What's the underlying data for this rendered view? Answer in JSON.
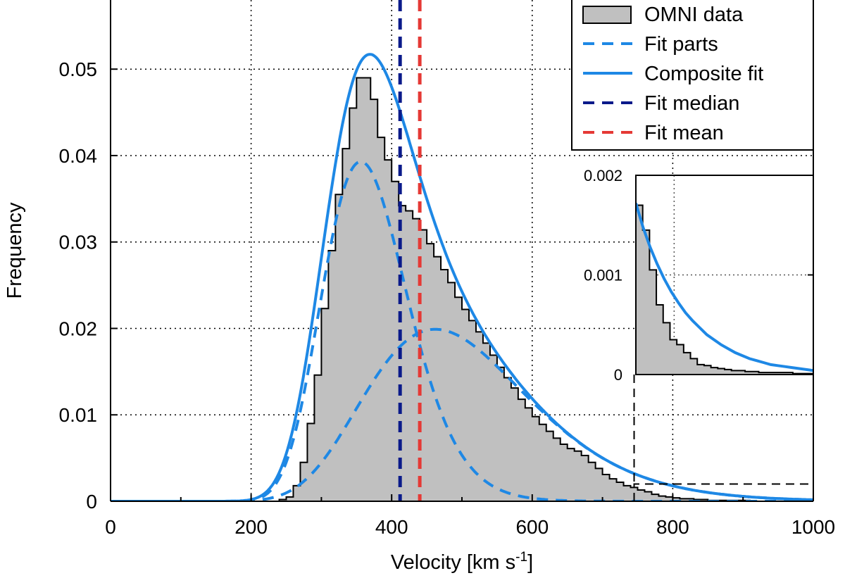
{
  "chart_data": {
    "type": "histogram",
    "xlabel": "Velocity [km s",
    "xlabel_sup": "-1",
    "xlabel_end": "]",
    "ylabel": "Frequency",
    "xlim": [
      0,
      1000
    ],
    "ylim": [
      0,
      0.058
    ],
    "xticks": [
      0,
      200,
      400,
      600,
      800,
      1000
    ],
    "xtick_labels": [
      "0",
      "200",
      "400",
      "600",
      "800",
      "1000"
    ],
    "yticks": [
      0,
      0.01,
      0.02,
      0.03,
      0.04,
      0.05
    ],
    "ytick_labels": [
      "0",
      "0.01",
      "0.02",
      "0.03",
      "0.04",
      "0.05"
    ],
    "grid": true,
    "legend_position": "top-right",
    "legend": [
      {
        "label": "OMNI data",
        "style": "bar",
        "color": "#c0c0c0"
      },
      {
        "label": "Fit parts",
        "style": "dashed",
        "color": "#1e88e5"
      },
      {
        "label": "Composite fit",
        "style": "solid",
        "color": "#1e88e5"
      },
      {
        "label": "Fit median",
        "style": "dashed",
        "color": "#0a1a8a"
      },
      {
        "label": "Fit mean",
        "style": "dashed",
        "color": "#e53935"
      }
    ],
    "histogram": {
      "name": "OMNI data",
      "bin_width": 10,
      "bin_start": 0,
      "values": [
        0,
        0,
        0,
        0,
        0,
        0,
        0,
        0,
        0,
        0,
        0,
        0,
        0,
        0,
        0,
        0,
        0,
        0,
        0,
        0,
        0,
        0,
        0,
        0,
        0.0002,
        0.0005,
        0.0018,
        0.0045,
        0.009,
        0.0146,
        0.0223,
        0.029,
        0.0355,
        0.0408,
        0.0455,
        0.049,
        0.049,
        0.0465,
        0.0421,
        0.0395,
        0.037,
        0.0342,
        0.0336,
        0.0327,
        0.0314,
        0.0298,
        0.0283,
        0.0268,
        0.0253,
        0.0236,
        0.0222,
        0.0209,
        0.0196,
        0.0183,
        0.0169,
        0.0155,
        0.0143,
        0.0131,
        0.0118,
        0.0108,
        0.0098,
        0.0089,
        0.0081,
        0.0073,
        0.0066,
        0.0061,
        0.0058,
        0.0053,
        0.0045,
        0.0038,
        0.0031,
        0.0026,
        0.0022,
        0.0018,
        0.0016,
        0.0013,
        0.0011,
        0.0008,
        0.0006,
        0.0005,
        0.0004,
        0.0003,
        0.0003,
        0.0002,
        0.0002,
        0.0001,
        0.0001,
        0.0001,
        0.0001,
        0.0001,
        0.0001,
        0,
        0,
        0,
        0,
        0,
        0,
        0,
        0,
        0
      ]
    },
    "fit_parts": [
      {
        "name": "Fit parts",
        "type": "lognormal",
        "scale": 0.0393,
        "mode": 356,
        "sigma": 0.17
      },
      {
        "name": "Fit parts",
        "type": "lognormal",
        "scale": 0.0199,
        "mode": 462,
        "sigma": 0.25
      }
    ],
    "composite_fit": {
      "name": "Composite fit",
      "peak": 0.0493,
      "peak_at": 368
    },
    "fit_median": 412,
    "fit_mean": 440,
    "inset": {
      "xlim": [
        745,
        1000
      ],
      "ylim": [
        0,
        0.002
      ],
      "yticks": [
        0,
        0.001,
        0.002
      ],
      "ytick_labels": [
        "0",
        "0.001",
        "0.002"
      ],
      "hist_values": [
        0.0017,
        0.00145,
        0.00105,
        0.0007,
        0.00052,
        0.00035,
        0.0003,
        0.00022,
        0.00016,
        0.0001,
        9e-05,
        7e-05,
        6e-05,
        5e-05,
        4e-05,
        4e-05,
        3e-05,
        3e-05,
        2e-05,
        2e-05,
        2e-05,
        2e-05,
        2e-05,
        1e-05,
        1e-05,
        1e-05
      ],
      "fit_values": [
        0.00172,
        0.00148,
        0.00128,
        0.00111,
        0.00096,
        0.00083,
        0.00072,
        0.00062,
        0.00054,
        0.00047,
        0.0004,
        0.00035,
        0.0003,
        0.00026,
        0.00022,
        0.00019,
        0.00016,
        0.00014,
        0.00012,
        0.0001,
        9e-05,
        8e-05,
        7e-05,
        6e-05,
        5e-05,
        4e-05
      ]
    }
  }
}
